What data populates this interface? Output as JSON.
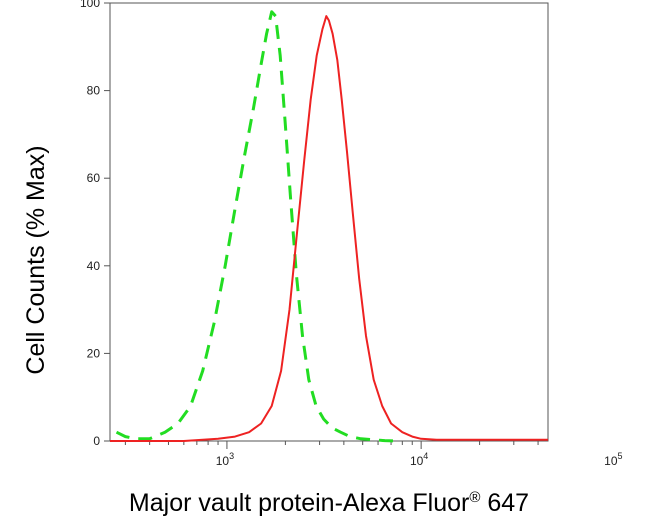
{
  "chart_data": {
    "type": "line",
    "xlabel": "Major vault protein-Alexa Fluor® 647",
    "ylabel": "Cell Counts (% Max)",
    "x_scale": "log",
    "xlim": [
      250,
      45000
    ],
    "ylim": [
      0,
      100
    ],
    "y_ticks": [
      0,
      20,
      40,
      60,
      80,
      100
    ],
    "x_ticks": [
      {
        "value": 1000,
        "base": "10",
        "exp": "3"
      },
      {
        "value": 10000,
        "base": "10",
        "exp": "4"
      },
      {
        "value": 100000,
        "base": "10",
        "exp": "5"
      }
    ],
    "grid": false,
    "legend": "none",
    "series": [
      {
        "style": "dashed",
        "color": "#22dd22",
        "x": [
          270,
          300,
          340,
          400,
          480,
          560,
          650,
          750,
          860,
          980,
          1100,
          1230,
          1370,
          1500,
          1600,
          1700,
          1780,
          1880,
          2000,
          2130,
          2280,
          2450,
          2640,
          2880,
          3150,
          3480,
          3850,
          4300,
          4900,
          5600,
          6500,
          7500
        ],
        "y": [
          2,
          1,
          0.5,
          0.5,
          2,
          4,
          8,
          16,
          27,
          40,
          53,
          65,
          76,
          86,
          93,
          98,
          97,
          88,
          72,
          55,
          38,
          24,
          14,
          8,
          5,
          3,
          2,
          1,
          0.5,
          0.3,
          0.1,
          0
        ]
      },
      {
        "style": "solid",
        "color": "#ee2222",
        "x": [
          250,
          600,
          900,
          1100,
          1300,
          1500,
          1700,
          1900,
          2100,
          2300,
          2500,
          2700,
          2900,
          3100,
          3250,
          3350,
          3500,
          3700,
          3900,
          4150,
          4450,
          4800,
          5200,
          5700,
          6300,
          7000,
          8000,
          9000,
          10000,
          12000,
          20000,
          45000
        ],
        "y": [
          0,
          0,
          0.5,
          1,
          2,
          4,
          8,
          16,
          30,
          48,
          64,
          78,
          88,
          94,
          97,
          96,
          93,
          87,
          78,
          66,
          52,
          37,
          24,
          14,
          8,
          4,
          2,
          1,
          0.5,
          0.3,
          0.3,
          0.3
        ]
      }
    ]
  }
}
